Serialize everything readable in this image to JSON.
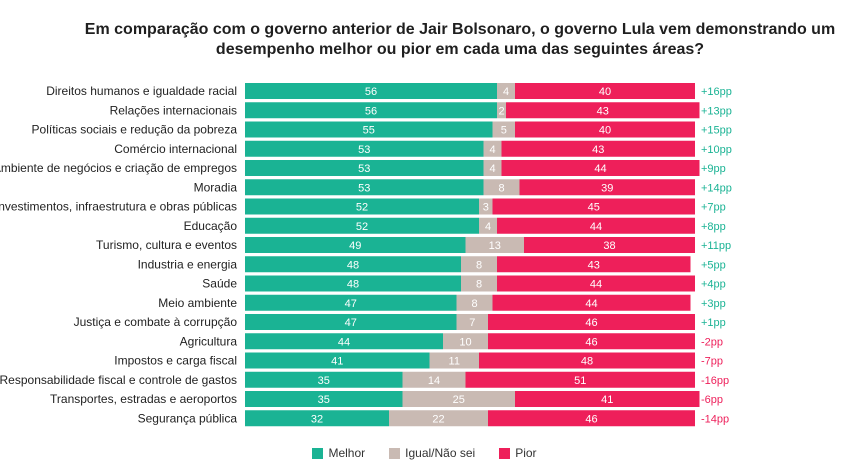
{
  "title_line1": "Em comparação com o governo anterior de Jair Bolsonaro, o governo Lula vem demonstrando um",
  "title_line2": "desempenho melhor ou pior em cada uma das seguintes áreas?",
  "colors": {
    "melhor": "#1ab394",
    "igual": "#c9bab3",
    "pior": "#ee1f5a",
    "diff_pos": "#1ab394",
    "diff_neg": "#ee1f5a"
  },
  "legend": {
    "melhor": "Melhor",
    "igual": "Igual/Não sei",
    "pior": "Pior"
  },
  "chart_data": {
    "type": "bar",
    "orientation": "horizontal",
    "stacked": true,
    "categories": [
      "Direitos humanos e igualdade racial",
      "Relações internacionais",
      "Políticas sociais e redução da pobreza",
      "Comércio internacional",
      "Ambiente de negócios e criação de empregos",
      "Moradia",
      "Investimentos, infraestrutura e obras públicas",
      "Educação",
      "Turismo, cultura e eventos",
      "Industria e energia",
      "Saúde",
      "Meio ambiente",
      "Justiça e combate à corrupção",
      "Agricultura",
      "Impostos e carga fiscal",
      "Responsabilidade fiscal e controle de gastos",
      "Transportes, estradas e aeroportos",
      "Segurança pública"
    ],
    "series": [
      {
        "name": "Melhor",
        "values": [
          56,
          56,
          55,
          53,
          53,
          53,
          52,
          52,
          49,
          48,
          48,
          47,
          47,
          44,
          41,
          35,
          35,
          32
        ]
      },
      {
        "name": "Igual/Não sei",
        "values": [
          4,
          2,
          5,
          4,
          4,
          8,
          3,
          4,
          13,
          8,
          8,
          8,
          7,
          10,
          11,
          14,
          25,
          22
        ]
      },
      {
        "name": "Pior",
        "values": [
          40,
          43,
          40,
          43,
          44,
          39,
          45,
          44,
          38,
          43,
          44,
          44,
          46,
          46,
          48,
          51,
          41,
          46
        ]
      }
    ],
    "differences": [
      "+16pp",
      "+13pp",
      "+15pp",
      "+10pp",
      "+9pp",
      "+14pp",
      "+7pp",
      "+8pp",
      "+11pp",
      "+5pp",
      "+4pp",
      "+3pp",
      "+1pp",
      "-2pp",
      "-7pp",
      "-16pp",
      "-6pp",
      "-14pp"
    ],
    "xlim": [
      0,
      100
    ],
    "legend_position": "bottom-center"
  }
}
